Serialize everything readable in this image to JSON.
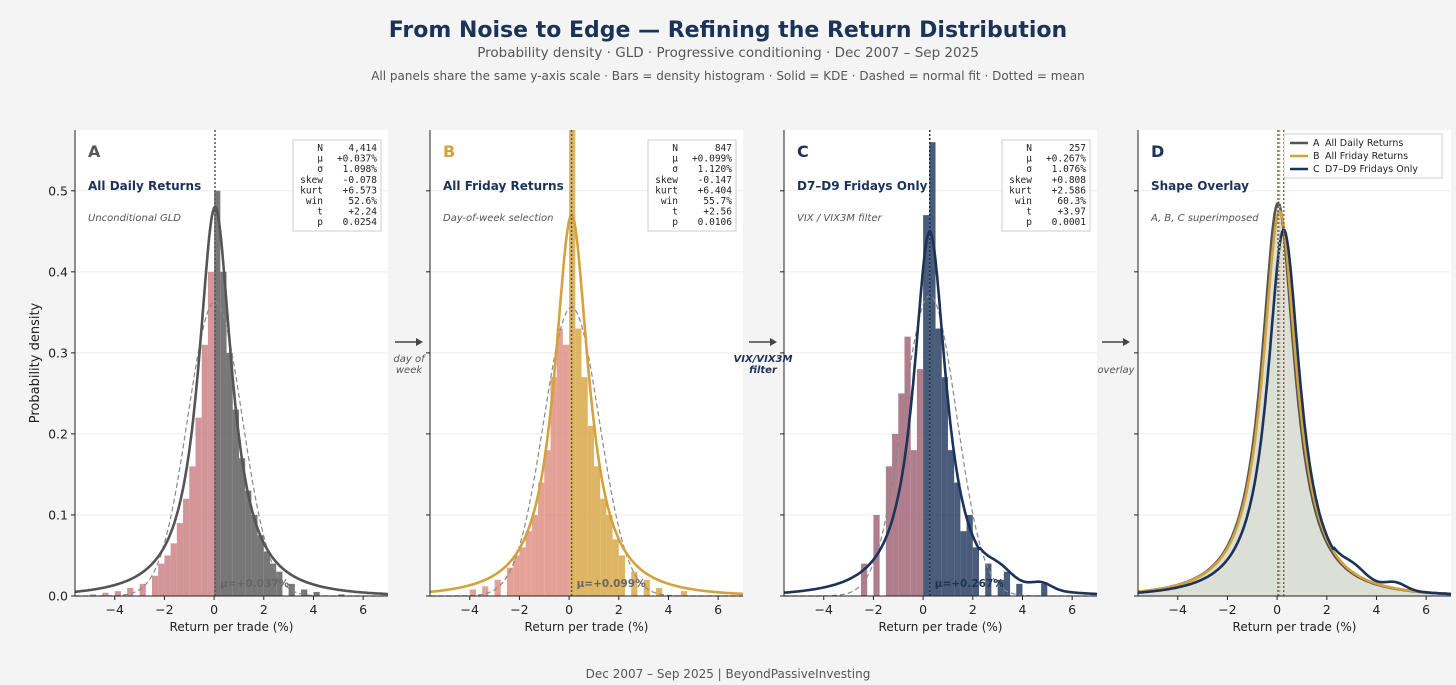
{
  "header": {
    "title": "From Noise to Edge — Refining the Return Distribution",
    "subtitle": "Probability density  ·  GLD  ·  Progressive conditioning  ·  Dec 2007 – Sep 2025",
    "note": "All panels share the same y-axis scale  ·  Bars = density histogram  ·  Solid = KDE  ·  Dashed = normal fit  ·  Dotted = mean"
  },
  "footer": "Dec 2007 – Sep 2025   |   BeyondPassiveInvesting",
  "colors": {
    "A": "#555555",
    "B": "#d4a23c",
    "C": "#1b3358",
    "neg": "#c97b7e",
    "negB": "#dd8a7a",
    "negC": "#9c5d70",
    "background": "#f4f4f4",
    "overlay_fill": "#dcdfd6"
  },
  "chart_data": {
    "type": "histogram-kde",
    "ylabel": "Probability density",
    "xlabel": "Return per trade (%)",
    "xlim": [
      -5.6,
      7.0
    ],
    "ylim": [
      0,
      0.575
    ],
    "xticks": [
      -4,
      -2,
      0,
      2,
      4,
      6
    ],
    "xtick_labels": [
      "−4",
      "−2",
      "0",
      "2",
      "4",
      "6"
    ],
    "yticks": [
      0.0,
      0.1,
      0.2,
      0.3,
      0.4,
      0.5
    ],
    "ytick_labels": [
      "0.0",
      "0.1",
      "0.2",
      "0.3",
      "0.4",
      "0.5"
    ],
    "arrows": [
      "day of week",
      "VIX/VIX3M filter",
      "overlay"
    ],
    "panels": [
      {
        "id": "A",
        "letter": "A",
        "name": "All Daily Returns",
        "desc": "Unconditional GLD",
        "mean": 0.037,
        "sd": 1.098,
        "kde_peak": 0.48,
        "mean_label": "μ=+0.037%",
        "stats": [
          [
            "N",
            "4,414"
          ],
          [
            "μ",
            "+0.037%"
          ],
          [
            "σ",
            "1.098%"
          ],
          [
            "skew",
            "-0.078"
          ],
          [
            "kurt",
            "+6.573"
          ],
          [
            "win",
            "52.6%"
          ],
          [
            "t",
            "+2.24"
          ],
          [
            "p",
            "0.0254"
          ]
        ],
        "bins": [
          [
            -5.0,
            0.002
          ],
          [
            -4.5,
            0.004
          ],
          [
            -4.0,
            0.006
          ],
          [
            -3.5,
            0.01
          ],
          [
            -3.0,
            0.015
          ],
          [
            -2.5,
            0.025
          ],
          [
            -2.25,
            0.04
          ],
          [
            -2.0,
            0.05
          ],
          [
            -1.75,
            0.065
          ],
          [
            -1.5,
            0.09
          ],
          [
            -1.25,
            0.12
          ],
          [
            -1.0,
            0.16
          ],
          [
            -0.75,
            0.22
          ],
          [
            -0.5,
            0.31
          ],
          [
            -0.25,
            0.4
          ],
          [
            0.0,
            0.5
          ],
          [
            0.25,
            0.4
          ],
          [
            0.5,
            0.3
          ],
          [
            0.75,
            0.23
          ],
          [
            1.0,
            0.17
          ],
          [
            1.25,
            0.13
          ],
          [
            1.5,
            0.1
          ],
          [
            1.75,
            0.075
          ],
          [
            2.0,
            0.055
          ],
          [
            2.25,
            0.04
          ],
          [
            2.5,
            0.03
          ],
          [
            3.0,
            0.015
          ],
          [
            3.5,
            0.008
          ],
          [
            4.0,
            0.005
          ],
          [
            5.0,
            0.002
          ]
        ]
      },
      {
        "id": "B",
        "letter": "B",
        "name": "All Friday Returns",
        "desc": "Day-of-week selection",
        "mean": 0.099,
        "sd": 1.12,
        "kde_peak": 0.47,
        "mean_label": "μ=+0.099%",
        "stats": [
          [
            "N",
            "847"
          ],
          [
            "μ",
            "+0.099%"
          ],
          [
            "σ",
            "1.120%"
          ],
          [
            "skew",
            "-0.147"
          ],
          [
            "kurt",
            "+6.404"
          ],
          [
            "win",
            "55.7%"
          ],
          [
            "t",
            "+2.56"
          ],
          [
            "p",
            "0.0106"
          ]
        ],
        "bins": [
          [
            -4.0,
            0.008
          ],
          [
            -3.5,
            0.012
          ],
          [
            -3.0,
            0.02
          ],
          [
            -2.5,
            0.035
          ],
          [
            -2.25,
            0.05
          ],
          [
            -2.0,
            0.06
          ],
          [
            -1.75,
            0.08
          ],
          [
            -1.5,
            0.1
          ],
          [
            -1.25,
            0.14
          ],
          [
            -1.0,
            0.18
          ],
          [
            -0.75,
            0.27
          ],
          [
            -0.5,
            0.33
          ],
          [
            -0.25,
            0.31
          ],
          [
            0.0,
            0.58
          ],
          [
            0.25,
            0.33
          ],
          [
            0.5,
            0.27
          ],
          [
            0.75,
            0.21
          ],
          [
            1.0,
            0.16
          ],
          [
            1.25,
            0.12
          ],
          [
            1.5,
            0.1
          ],
          [
            1.75,
            0.07
          ],
          [
            2.0,
            0.05
          ],
          [
            2.5,
            0.03
          ],
          [
            3.0,
            0.02
          ],
          [
            3.5,
            0.01
          ],
          [
            4.5,
            0.006
          ]
        ]
      },
      {
        "id": "C",
        "letter": "C",
        "name": "D7–D9 Fridays Only",
        "desc": "VIX / VIX3M filter",
        "mean": 0.267,
        "sd": 1.076,
        "kde_peak": 0.45,
        "mean_label": "μ=+0.267%",
        "stats": [
          [
            "N",
            "257"
          ],
          [
            "μ",
            "+0.267%"
          ],
          [
            "σ",
            "1.076%"
          ],
          [
            "skew",
            "+0.808"
          ],
          [
            "kurt",
            "+2.586"
          ],
          [
            "win",
            "60.3%"
          ],
          [
            "t",
            "+3.97"
          ],
          [
            "p",
            "0.0001"
          ]
        ],
        "bins": [
          [
            -2.5,
            0.04
          ],
          [
            -2.0,
            0.1
          ],
          [
            -1.5,
            0.16
          ],
          [
            -1.25,
            0.2
          ],
          [
            -1.0,
            0.25
          ],
          [
            -0.75,
            0.32
          ],
          [
            -0.5,
            0.18
          ],
          [
            -0.25,
            0.28
          ],
          [
            0.0,
            0.47
          ],
          [
            0.25,
            0.56
          ],
          [
            0.5,
            0.33
          ],
          [
            0.75,
            0.27
          ],
          [
            1.0,
            0.18
          ],
          [
            1.25,
            0.14
          ],
          [
            1.5,
            0.08
          ],
          [
            1.75,
            0.1
          ],
          [
            2.0,
            0.06
          ],
          [
            2.5,
            0.04
          ],
          [
            3.0,
            0.02
          ],
          [
            3.25,
            0.03
          ],
          [
            3.75,
            0.015
          ],
          [
            4.75,
            0.015
          ]
        ]
      },
      {
        "id": "D",
        "letter": "D",
        "name": "Shape Overlay",
        "desc": "A, B, C superimposed",
        "legend": [
          {
            "key": "A",
            "label": "All Daily Returns"
          },
          {
            "key": "B",
            "label": "All Friday Returns"
          },
          {
            "key": "C",
            "label": "D7–D9 Fridays Only"
          }
        ]
      }
    ]
  }
}
